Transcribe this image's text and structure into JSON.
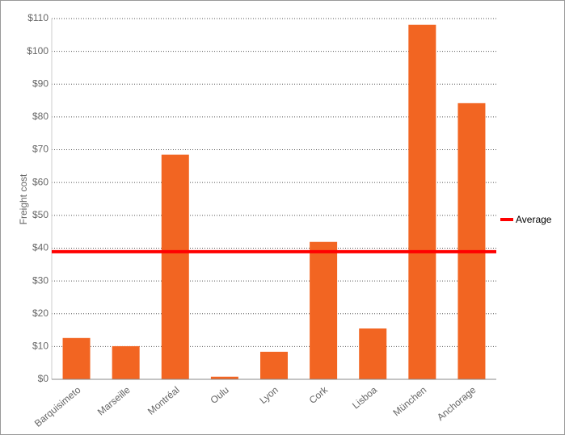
{
  "chart_data": {
    "type": "bar",
    "y_label": "Freight cost",
    "categories": [
      "Barquisimeto",
      "Marseille",
      "Montréal",
      "Oulu",
      "Lyon",
      "Cork",
      "Lisboa",
      "München",
      "Anchorage"
    ],
    "values": [
      12.6,
      10.1,
      68.5,
      0.8,
      8.4,
      41.9,
      15.5,
      108.1,
      84.2
    ],
    "color": "#f26522",
    "average": {
      "name": "Average",
      "value": 38.9,
      "color": "#ff0000"
    },
    "ylim": [
      0,
      110
    ],
    "yticks": [
      {
        "value": 0,
        "label": "$0"
      },
      {
        "value": 10,
        "label": "$10"
      },
      {
        "value": 20,
        "label": "$20"
      },
      {
        "value": 30,
        "label": "$30"
      },
      {
        "value": 40,
        "label": "$40"
      },
      {
        "value": 50,
        "label": "$50"
      },
      {
        "value": 60,
        "label": "$60"
      },
      {
        "value": 70,
        "label": "$70"
      },
      {
        "value": 80,
        "label": "$80"
      },
      {
        "value": 90,
        "label": "$90"
      },
      {
        "value": 100,
        "label": "$100"
      },
      {
        "value": 110,
        "label": "$110"
      }
    ],
    "grid": true
  }
}
